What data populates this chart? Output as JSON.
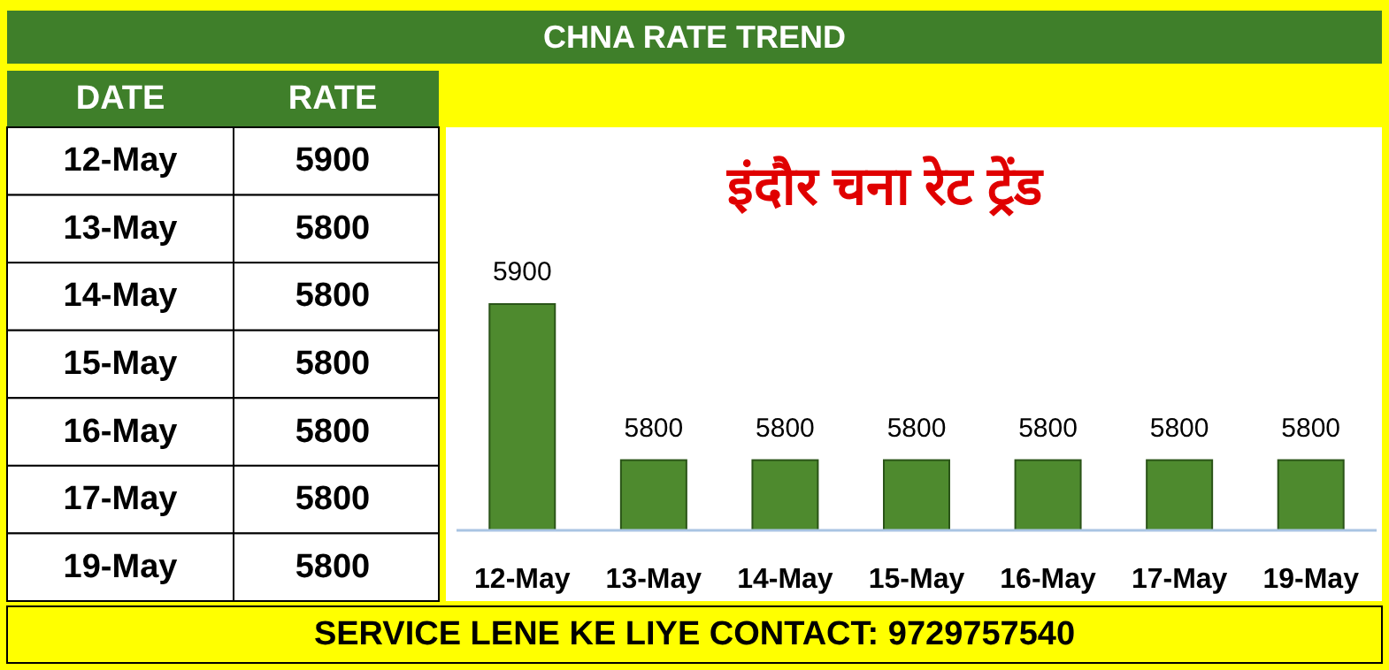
{
  "chart_data": [
    {
      "type": "other",
      "annotations": [
        "DATE",
        "RATE"
      ],
      "categories": [
        "12-May",
        "13-May",
        "14-May",
        "15-May",
        "16-May",
        "17-May",
        "19-May"
      ],
      "values": [
        5900,
        5800,
        5800,
        5800,
        5800,
        5800,
        5800
      ],
      "data_labels": true
    },
    {
      "type": "bar",
      "title": "इंदौर चना रेट ट्रेंड",
      "subtitle": "CHNA RATE TREND",
      "categories": [
        "12-May",
        "13-May",
        "14-May",
        "15-May",
        "16-May",
        "17-May",
        "19-May"
      ],
      "values": [
        5900,
        5800,
        5800,
        5800,
        5800,
        5800,
        5800
      ],
      "color": "#4e8a2e",
      "ylim": [
        5755,
        5900
      ],
      "data_labels": true,
      "annotations": [
        "SERVICE LENE KE LIYE CONTACT: 9729757540"
      ]
    }
  ]
}
